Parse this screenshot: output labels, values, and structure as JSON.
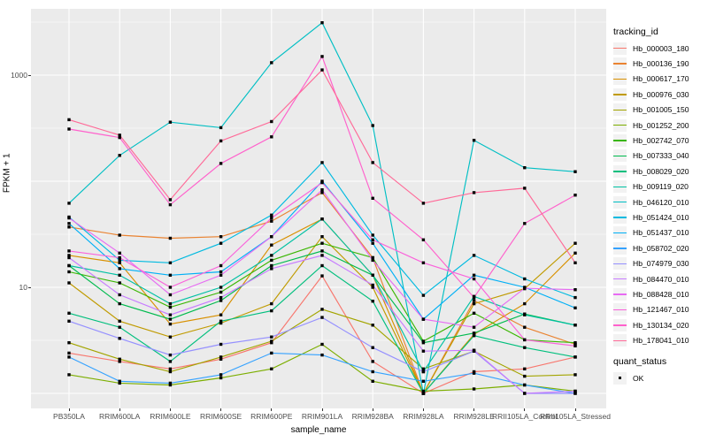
{
  "axes": {
    "x": {
      "title": "sample_name"
    },
    "y": {
      "title": "FPKM + 1",
      "tick_labels": [
        "1000",
        "10"
      ],
      "tick_values": [
        1000,
        10
      ]
    }
  },
  "legend": {
    "title": "tracking_id"
  },
  "quant_legend": {
    "title": "quant_status",
    "items": [
      {
        "label": "OK",
        "marker": "black-square"
      }
    ]
  },
  "style": {
    "panel_bg": "#EBEBEB",
    "grid_major": "#FFFFFF",
    "grid_minor": "#F5F5F5",
    "marker_color": "#000000",
    "tick_text": "#4d4d4d"
  },
  "chart_data": {
    "type": "line",
    "x_type": "categorical",
    "xlabel": "sample_name",
    "ylabel": "FPKM + 1",
    "y_scale": "log10",
    "y_ticks_labeled": [
      10,
      1000
    ],
    "ylim": [
      0.85,
      4700
    ],
    "grid": true,
    "legend_title": "tracking_id",
    "legend_position": "right",
    "point_marker": "small black square (quant_status = OK)",
    "categories": [
      "PB350LA",
      "RRIM600LA",
      "RRIM600LE",
      "RRIM600SE",
      "RRIM600PE",
      "RRIM901LA",
      "RRIM928BA",
      "RRIM928LA",
      "RRIM928LE",
      "RRII105LA_Control",
      "RRII105LA_Stressed"
    ],
    "series": [
      {
        "name": "Hb_000003_180",
        "color": "#F8766D",
        "values": [
          2.4,
          2.0,
          1.7,
          2.1,
          3.0,
          12.8,
          2.0,
          1.0,
          1.6,
          1.7,
          2.2
        ]
      },
      {
        "name": "Hb_000136_190",
        "color": "#EA8331",
        "values": [
          37,
          31,
          29,
          30,
          42,
          78,
          19,
          1.0,
          7.5,
          4.2,
          2.9
        ]
      },
      {
        "name": "Hb_000617_170",
        "color": "#D89000",
        "values": [
          20,
          17,
          4.5,
          5.5,
          25,
          44,
          13,
          1.0,
          3.6,
          7.0,
          21
        ]
      },
      {
        "name": "Hb_000976_030",
        "color": "#C09B00",
        "values": [
          11,
          4.8,
          3.4,
          4.6,
          7.0,
          30,
          10,
          1.0,
          7.0,
          9.7,
          26
        ]
      },
      {
        "name": "Hb_001005_150",
        "color": "#A3A500",
        "values": [
          3.0,
          2.1,
          1.6,
          2.2,
          3.1,
          6.2,
          4.4,
          1.7,
          2.5,
          1.45,
          1.5
        ]
      },
      {
        "name": "Hb_001252_200",
        "color": "#7CAE00",
        "values": [
          1.5,
          1.25,
          1.2,
          1.4,
          1.7,
          2.9,
          1.3,
          1.05,
          1.1,
          1.2,
          1.05
        ]
      },
      {
        "name": "Hb_002742_070",
        "color": "#39B600",
        "values": [
          14,
          11,
          6.5,
          9.0,
          18,
          26,
          19,
          3.1,
          5.7,
          3.2,
          3.0
        ]
      },
      {
        "name": "Hb_007333_040",
        "color": "#00BB4E",
        "values": [
          16,
          7.0,
          5.0,
          7.5,
          16,
          22,
          13,
          3.0,
          3.7,
          5.6,
          4.4
        ]
      },
      {
        "name": "Hb_008029_020",
        "color": "#00BF7D",
        "values": [
          5.7,
          4.2,
          2.0,
          4.8,
          6.0,
          16,
          7.4,
          1.0,
          3.5,
          2.7,
          2.2
        ]
      },
      {
        "name": "Hb_009119_020",
        "color": "#00C1A3",
        "values": [
          16,
          13,
          7.0,
          10,
          20,
          44,
          13,
          1.6,
          8.2,
          5.5,
          4.4
        ]
      },
      {
        "name": "Hb_046120_010",
        "color": "#00BFC4",
        "values": [
          62,
          175,
          360,
          320,
          1310,
          3120,
          335,
          1.0,
          243,
          134,
          123
        ]
      },
      {
        "name": "Hb_051424_010",
        "color": "#00BAE0",
        "values": [
          46,
          18,
          17,
          26,
          48,
          150,
          31,
          8.4,
          20,
          12,
          8.0
        ]
      },
      {
        "name": "Hb_051437_010",
        "color": "#00B0F6",
        "values": [
          40,
          15,
          13,
          14,
          30,
          100,
          26,
          5.0,
          13,
          10,
          6.4
        ]
      },
      {
        "name": "Hb_058702_020",
        "color": "#35A2FF",
        "values": [
          2.2,
          1.3,
          1.25,
          1.5,
          2.4,
          2.3,
          1.6,
          1.3,
          1.55,
          1.2,
          1.0
        ]
      },
      {
        "name": "Hb_074979_030",
        "color": "#9590FF",
        "values": [
          4.8,
          3.3,
          2.3,
          2.9,
          3.4,
          5.2,
          2.7,
          1.6,
          2.5,
          1.0,
          1.0
        ]
      },
      {
        "name": "Hb_084470_010",
        "color": "#C77CFF",
        "values": [
          19,
          8.5,
          5.5,
          8.0,
          15,
          20,
          10.5,
          2.5,
          2.55,
          1.0,
          1.05
        ]
      },
      {
        "name": "Hb_088428_010",
        "color": "#E76BF3",
        "values": [
          45,
          21,
          8.5,
          13,
          30,
          83,
          18,
          5.0,
          4.2,
          9.8,
          9.5
        ]
      },
      {
        "name": "Hb_121467_010",
        "color": "#FA62DB",
        "values": [
          22,
          19,
          10,
          16,
          45,
          97,
          28,
          17,
          12,
          3.2,
          2.8
        ]
      },
      {
        "name": "Hb_130134_020",
        "color": "#FF61CC",
        "values": [
          310,
          258,
          60,
          147,
          262,
          1500,
          69,
          28,
          8.0,
          40,
          74
        ]
      },
      {
        "name": "Hb_178041_010",
        "color": "#FF6A98",
        "values": [
          380,
          272,
          67,
          240,
          365,
          1120,
          150,
          62,
          78,
          86,
          17
        ]
      }
    ],
    "quant_status": {
      "title": "quant_status",
      "label": "OK"
    }
  }
}
